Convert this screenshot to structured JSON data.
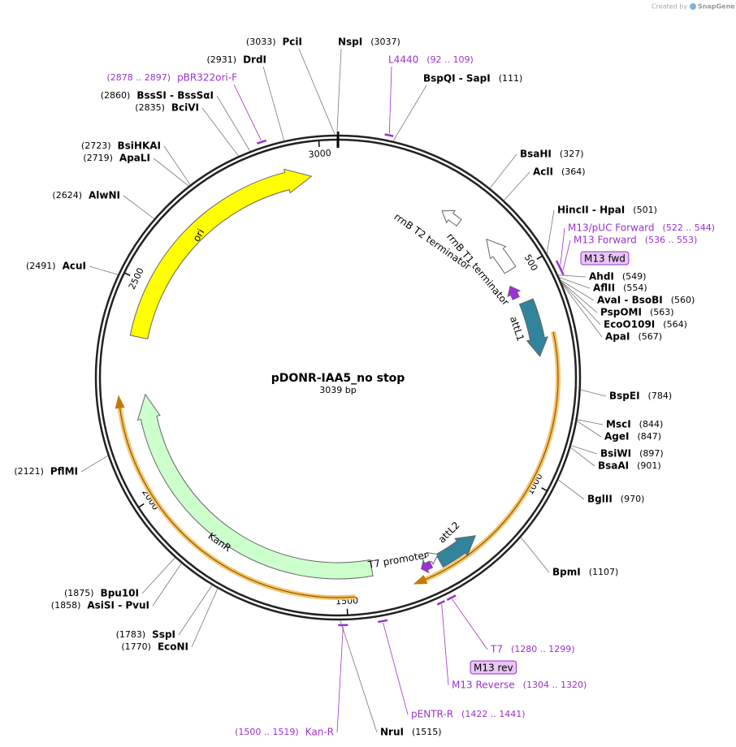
{
  "credit_prefix": "Created by",
  "credit_brand": "SnapGene",
  "title": "pDONR-IAA5_no stop",
  "length": 3039,
  "length_label": "3039 bp",
  "ticks": [
    500,
    1000,
    1500,
    2000,
    2500,
    3000
  ],
  "enzymes": [
    {
      "name": "PciI",
      "position": 3033,
      "position_label": "(3033)"
    },
    {
      "name": "NspI",
      "position": 3037,
      "position_label": "(3037)"
    },
    {
      "name": "DrdI",
      "position": 2931,
      "position_label": "(2931)"
    },
    {
      "name": "BspQI - SapI",
      "position": 111,
      "position_label": "(111)"
    },
    {
      "name": "BssSI - BssSαI",
      "position": 2860,
      "position_label": "(2860)"
    },
    {
      "name": "BciVI",
      "position": 2835,
      "position_label": "(2835)"
    },
    {
      "name": "BsiHKAI",
      "position": 2723,
      "position_label": "(2723)"
    },
    {
      "name": "ApaLI",
      "position": 2719,
      "position_label": "(2719)"
    },
    {
      "name": "AlwNI",
      "position": 2624,
      "position_label": "(2624)"
    },
    {
      "name": "AcuI",
      "position": 2491,
      "position_label": "(2491)"
    },
    {
      "name": "PflMI",
      "position": 2121,
      "position_label": "(2121)"
    },
    {
      "name": "Bpu10I",
      "position": 1875,
      "position_label": "(1875)"
    },
    {
      "name": "AsiSI - PvuI",
      "position": 1858,
      "position_label": "(1858)"
    },
    {
      "name": "SspI",
      "position": 1783,
      "position_label": "(1783)"
    },
    {
      "name": "EcoNI",
      "position": 1770,
      "position_label": "(1770)"
    },
    {
      "name": "NruI",
      "position": 1515,
      "position_label": "(1515)"
    },
    {
      "name": "BsaHI",
      "position": 327,
      "position_label": "(327)"
    },
    {
      "name": "AclI",
      "position": 364,
      "position_label": "(364)"
    },
    {
      "name": "HincII - HpaI",
      "position": 501,
      "position_label": "(501)"
    },
    {
      "name": "AhdI",
      "position": 549,
      "position_label": "(549)"
    },
    {
      "name": "AflII",
      "position": 554,
      "position_label": "(554)"
    },
    {
      "name": "AvaI - BsoBI",
      "position": 560,
      "position_label": "(560)"
    },
    {
      "name": "PspOMI",
      "position": 563,
      "position_label": "(563)"
    },
    {
      "name": "EcoO109I",
      "position": 564,
      "position_label": "(564)"
    },
    {
      "name": "ApaI",
      "position": 567,
      "position_label": "(567)"
    },
    {
      "name": "BspEI",
      "position": 784,
      "position_label": "(784)"
    },
    {
      "name": "MscI",
      "position": 844,
      "position_label": "(844)"
    },
    {
      "name": "AgeI",
      "position": 847,
      "position_label": "(847)"
    },
    {
      "name": "BsiWI",
      "position": 897,
      "position_label": "(897)"
    },
    {
      "name": "BsaAI",
      "position": 901,
      "position_label": "(901)"
    },
    {
      "name": "BglII",
      "position": 970,
      "position_label": "(970)"
    },
    {
      "name": "BpmI",
      "position": 1107,
      "position_label": "(1107)"
    }
  ],
  "primers": [
    {
      "name": "L4440",
      "start": 92,
      "end": 109,
      "range_label": "(92 .. 109)"
    },
    {
      "name": "pBR322ori-F",
      "start": 2878,
      "end": 2897,
      "range_label": "(2878 .. 2897)"
    },
    {
      "name": "M13/pUC Forward",
      "start": 522,
      "end": 544,
      "range_label": "(522 .. 544)"
    },
    {
      "name": "M13 Forward",
      "start": 536,
      "end": 553,
      "range_label": "(536 .. 553)"
    },
    {
      "name": "T7",
      "start": 1280,
      "end": 1299,
      "range_label": "(1280 .. 1299)"
    },
    {
      "name": "M13 Reverse",
      "start": 1304,
      "end": 1320,
      "range_label": "(1304 .. 1320)"
    },
    {
      "name": "pENTR-R",
      "start": 1422,
      "end": 1441,
      "range_label": "(1422 .. 1441)"
    },
    {
      "name": "Kan-R",
      "start": 1500,
      "end": 1519,
      "range_label": "(1500 .. 1519)"
    }
  ],
  "boxes": [
    "M13 fwd",
    "M13 rev"
  ],
  "features": [
    {
      "name": "ori",
      "color": "#ffff00"
    },
    {
      "name": "KanR",
      "color": "#ccffcc"
    },
    {
      "name": "attL1",
      "color": "#31849b"
    },
    {
      "name": "attL2",
      "color": "#31849b"
    },
    {
      "name": "rrnB T1 terminator",
      "color": "#ffffff"
    },
    {
      "name": "rrnB T2 terminator",
      "color": "#ffffff"
    },
    {
      "name": "T7 promoter",
      "color": "#ffffff"
    }
  ]
}
